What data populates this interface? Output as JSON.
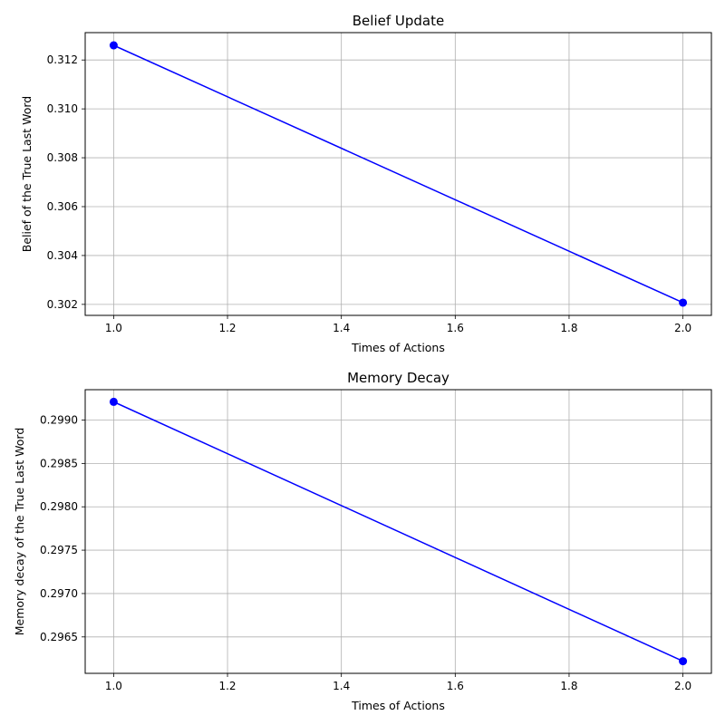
{
  "chart_data": [
    {
      "type": "line",
      "title": "Belief Update",
      "xlabel": "Times of Actions",
      "ylabel": "Belief of the True Last Word",
      "xlim": [
        0.95,
        2.05
      ],
      "ylim": [
        0.30155,
        0.31312
      ],
      "xticks": [
        "1.0",
        "1.2",
        "1.4",
        "1.6",
        "1.8",
        "2.0"
      ],
      "yticks": [
        "0.302",
        "0.304",
        "0.306",
        "0.308",
        "0.310",
        "0.312"
      ],
      "grid": true,
      "series": [
        {
          "color": "#0000ff",
          "marker": "circle",
          "x": [
            1.0,
            2.0
          ],
          "y": [
            0.3126,
            0.30207
          ]
        }
      ]
    },
    {
      "type": "line",
      "title": "Memory Decay",
      "xlabel": "Times of Actions",
      "ylabel": "Memory decay of the True Last Word",
      "xlim": [
        0.95,
        2.05
      ],
      "ylim": [
        0.29608,
        0.29935
      ],
      "xticks": [
        "1.0",
        "1.2",
        "1.4",
        "1.6",
        "1.8",
        "2.0"
      ],
      "yticks": [
        "0.2965",
        "0.2970",
        "0.2975",
        "0.2980",
        "0.2985",
        "0.2990"
      ],
      "grid": true,
      "series": [
        {
          "color": "#0000ff",
          "marker": "circle",
          "x": [
            1.0,
            2.0
          ],
          "y": [
            0.29921,
            0.29622
          ]
        }
      ]
    }
  ]
}
